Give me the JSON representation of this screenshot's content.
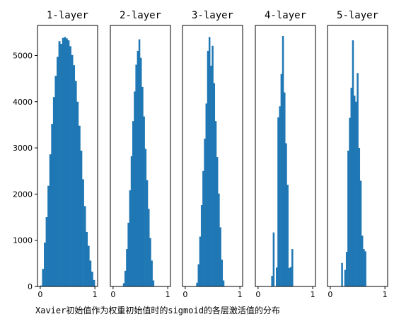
{
  "chart_data": {
    "type": "bar",
    "caption": "Xavier初始值作为权重初始值时的sigmoid的各层激活值的分布",
    "bar_color": "#1f77b4",
    "ylim": [
      0,
      5650
    ],
    "y_ticks": [
      0,
      1000,
      2000,
      3000,
      4000,
      5000
    ],
    "x_ticks": [
      0,
      1
    ],
    "panels": [
      {
        "title": "1-layer",
        "xlim": [
          -0.05,
          1.05
        ],
        "bin_edges_start": 0.0,
        "bin_width": 0.0333,
        "values": [
          20,
          380,
          950,
          1500,
          2180,
          2860,
          3520,
          4100,
          4560,
          4970,
          5310,
          5250,
          5380,
          5400,
          5370,
          5330,
          5200,
          5010,
          4790,
          4450,
          4000,
          3480,
          2940,
          2320,
          1740,
          1180,
          880,
          560,
          320,
          140
        ]
      },
      {
        "title": "2-layer",
        "xlim": [
          -0.05,
          1.05
        ],
        "bin_edges_start": 0.18,
        "bin_width": 0.0285,
        "values": [
          70,
          340,
          810,
          1380,
          2080,
          2820,
          3580,
          4220,
          4800,
          5100,
          5350,
          4950,
          4320,
          3680,
          2980,
          2300,
          1680,
          1050,
          560,
          130
        ]
      },
      {
        "title": "3-layer",
        "xlim": [
          -0.05,
          1.05
        ],
        "bin_edges_start": 0.2,
        "bin_width": 0.0285,
        "values": [
          80,
          480,
          1080,
          1760,
          2500,
          3200,
          3960,
          5100,
          5400,
          4780,
          5210,
          4400,
          3580,
          2800,
          2010,
          1280,
          580,
          130
        ]
      },
      {
        "title": "4-layer",
        "xlim": [
          -0.05,
          1.05
        ],
        "bin_edges_start": 0.24,
        "bin_width": 0.0285,
        "values": [
          230,
          1170,
          0,
          410,
          3660,
          3900,
          4600,
          5420,
          4200,
          3100,
          2200,
          400,
          420,
          810
        ]
      },
      {
        "title": "5-layer",
        "xlim": [
          -0.05,
          1.05
        ],
        "bin_edges_start": 0.2,
        "bin_width": 0.0285,
        "values": [
          510,
          0,
          360,
          750,
          2940,
          3650,
          4300,
          5330,
          4130,
          4000,
          4620,
          3000,
          2290,
          1100,
          810,
          760
        ]
      }
    ]
  }
}
